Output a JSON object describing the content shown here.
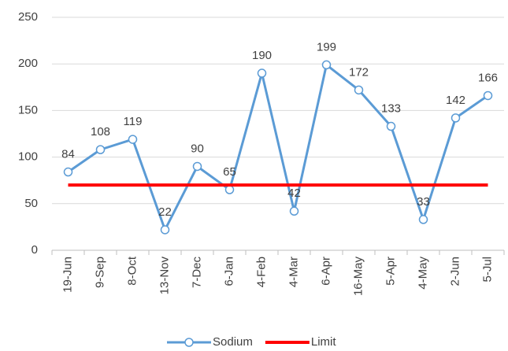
{
  "chart_data": {
    "type": "line",
    "categories": [
      "19-Jun",
      "9-Sep",
      "8-Oct",
      "13-Nov",
      "7-Dec",
      "6-Jan",
      "4-Feb",
      "4-Mar",
      "6-Apr",
      "16-May",
      "5-Apr",
      "4-May",
      "2-Jun",
      "5-Jul"
    ],
    "series": [
      {
        "name": "Sodium",
        "color": "#5b9bd5",
        "values": [
          84,
          108,
          119,
          22,
          90,
          65,
          190,
          42,
          199,
          172,
          133,
          33,
          142,
          166
        ],
        "markers": true,
        "data_labels": true
      },
      {
        "name": "Limit",
        "color": "#ff0000",
        "values": [
          70,
          70,
          70,
          70,
          70,
          70,
          70,
          70,
          70,
          70,
          70,
          70,
          70,
          70
        ],
        "markers": false,
        "data_labels": false
      }
    ],
    "ylim": [
      0,
      250
    ],
    "yticks": [
      0,
      50,
      100,
      150,
      200,
      250
    ],
    "grid": true,
    "legend": "bottom"
  }
}
